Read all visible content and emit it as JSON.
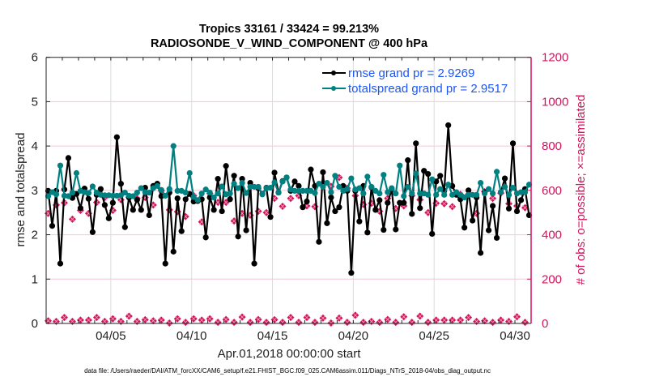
{
  "chart_data": {
    "type": "line",
    "title": "Tropics 33161 / 33424 = 99.213%",
    "subtitle": "RADIOSONDE_V_WIND_COMPONENT @ 400 hPa",
    "xlabel": "Apr.01,2018 00:00:00 start",
    "ylabel": "rmse and totalspread",
    "ylabel_right": "# of obs: o=possible; ×=assimilated",
    "footer": "data file: /Users/raeder/DAI/ATM_forcXX/CAM6_setup/f.e21.FHIST_BGC.f09_025.CAM6assim.011/Diags_NTrS_2018-04/obs_diag_output.nc",
    "xlim": [
      "2018-04-01T00:00",
      "2018-05-01T00:00"
    ],
    "ylim": [
      0,
      6
    ],
    "ylim_right": [
      0,
      1200
    ],
    "x_ticks": [
      "2018-04-05",
      "2018-04-10",
      "2018-04-15",
      "2018-04-20",
      "2018-04-25",
      "2018-04-30"
    ],
    "x_tick_labels": [
      "04/05",
      "04/10",
      "04/15",
      "04/20",
      "04/25",
      "04/30"
    ],
    "y_ticks": [
      "0",
      "1",
      "2",
      "3",
      "4",
      "5",
      "6"
    ],
    "y_ticks_right": [
      "0",
      "200",
      "400",
      "600",
      "800",
      "1000",
      "1200"
    ],
    "grid": true,
    "legend_placement": "top-right",
    "colors": {
      "rmse": "#000000",
      "totalspread": "#008080",
      "obs": "#d1145a",
      "legend_text": "#1c56f5"
    },
    "time_step_hours": 6,
    "first_time": "2018-04-01T03:00",
    "series": [
      {
        "name": "rmse grand pr = 2.9269",
        "axis": "left",
        "values": [
          2.99,
          2.2,
          2.99,
          1.35,
          3.02,
          3.73,
          2.83,
          2.92,
          2.6,
          3.04,
          2.81,
          2.06,
          2.9,
          3.03,
          2.67,
          2.37,
          2.72,
          4.2,
          3.15,
          2.17,
          2.84,
          2.56,
          2.79,
          2.56,
          3.06,
          2.44,
          3.1,
          3.15,
          2.87,
          1.35,
          2.95,
          1.62,
          2.82,
          2.08,
          2.8,
          2.92,
          2.75,
          2.76,
          2.8,
          1.94,
          2.84,
          2.56,
          3.26,
          2.53,
          3.55,
          2.8,
          3.33,
          1.96,
          3.26,
          2.1,
          3.17,
          1.35,
          3.05,
          2.92,
          3.06,
          2.4,
          3.4,
          2.95,
          3.21,
          3.29,
          2.99,
          3.2,
          3.1,
          2.62,
          2.75,
          3.47,
          3.1,
          1.84,
          3.41,
          2.26,
          2.84,
          2.53,
          2.62,
          3.1,
          2.99,
          1.14,
          2.99,
          2.3,
          3.1,
          2.05,
          3.07,
          2.56,
          2.78,
          2.11,
          2.72,
          3.02,
          2.12,
          2.72,
          2.72,
          3.68,
          2.47,
          4.06,
          2.6,
          3.44,
          3.37,
          2.02,
          3.2,
          3.33,
          2.99,
          4.47,
          3.1,
          2.9,
          2.8,
          2.16,
          3.0,
          2.32,
          2.84,
          1.59,
          2.96,
          2.1,
          2.65,
          1.93,
          2.96,
          3.27,
          2.59,
          4.06,
          2.53,
          2.78,
          3.03,
          2.44
        ]
      },
      {
        "name": "totalspread grand pr = 2.9517",
        "axis": "left",
        "values": [
          2.87,
          2.96,
          2.91,
          3.56,
          2.88,
          2.87,
          2.95,
          3.39,
          2.99,
          2.96,
          2.94,
          3.09,
          2.95,
          2.9,
          2.89,
          2.89,
          2.88,
          2.88,
          2.89,
          2.95,
          2.88,
          2.87,
          2.95,
          3.05,
          2.96,
          2.95,
          3.05,
          3.1,
          3.01,
          2.88,
          3.03,
          4.0,
          2.99,
          2.99,
          2.95,
          3.39,
          2.85,
          2.78,
          2.93,
          3.02,
          2.95,
          2.84,
          2.93,
          3.09,
          2.91,
          2.93,
          3.15,
          3.05,
          3.17,
          2.94,
          3.08,
          3.08,
          3.08,
          2.91,
          3.05,
          3.06,
          3.18,
          2.95,
          3.2,
          3.29,
          3.02,
          2.99,
          2.99,
          2.99,
          2.99,
          2.99,
          2.94,
          3.15,
          3.08,
          3.17,
          2.96,
          3.33,
          3.08,
          2.99,
          3.03,
          3.27,
          3.02,
          3.05,
          2.93,
          3.31,
          3.08,
          2.99,
          2.93,
          3.35,
          2.96,
          3.05,
          2.93,
          3.56,
          2.87,
          3.08,
          2.93,
          3.38,
          2.93,
          2.93,
          2.9,
          3.25,
          2.9,
          3.03,
          2.9,
          3.13,
          2.9,
          2.96,
          2.9,
          2.84,
          2.9,
          2.9,
          2.9,
          3.17,
          2.93,
          3.03,
          2.93,
          3.42,
          2.96,
          3.08,
          2.9,
          3.06,
          2.93,
          2.96,
          2.96,
          3.13
        ]
      },
      {
        "name": "obs possible",
        "axis": "right",
        "every_n_points": 2,
        "values": [
          496,
          534,
          544,
          470,
          510,
          496,
          546,
          568,
          510,
          558,
          570,
          564,
          568,
          534,
          598,
          512,
          504,
          482,
          576,
          458,
          586,
          546,
          546,
          462,
          496,
          488,
          506,
          500,
          564,
          528,
          564,
          576,
          530,
          527,
          634,
          618,
          658,
          610,
          576,
          536,
          542,
          506,
          564,
          518,
          530,
          576,
          558,
          500,
          542,
          540,
          527,
          582,
          582,
          496,
          594,
          564,
          588,
          540,
          530,
          522
        ]
      },
      {
        "name": "obs assimilated",
        "axis": "right",
        "every_n_points": 2,
        "values": [
          12,
          9,
          27,
          9,
          15,
          15,
          27,
          9,
          21,
          9,
          33,
          9,
          17,
          12,
          15,
          2,
          21,
          5,
          21,
          15,
          21,
          5,
          18,
          5,
          29,
          5,
          18,
          5,
          17,
          5,
          27,
          5,
          27,
          5,
          24,
          2,
          24,
          5,
          37,
          5,
          9,
          5,
          18,
          5,
          30,
          5,
          33,
          5,
          15,
          15,
          15,
          15,
          27,
          9,
          12,
          5,
          15,
          9,
          30,
          5
        ]
      }
    ]
  }
}
